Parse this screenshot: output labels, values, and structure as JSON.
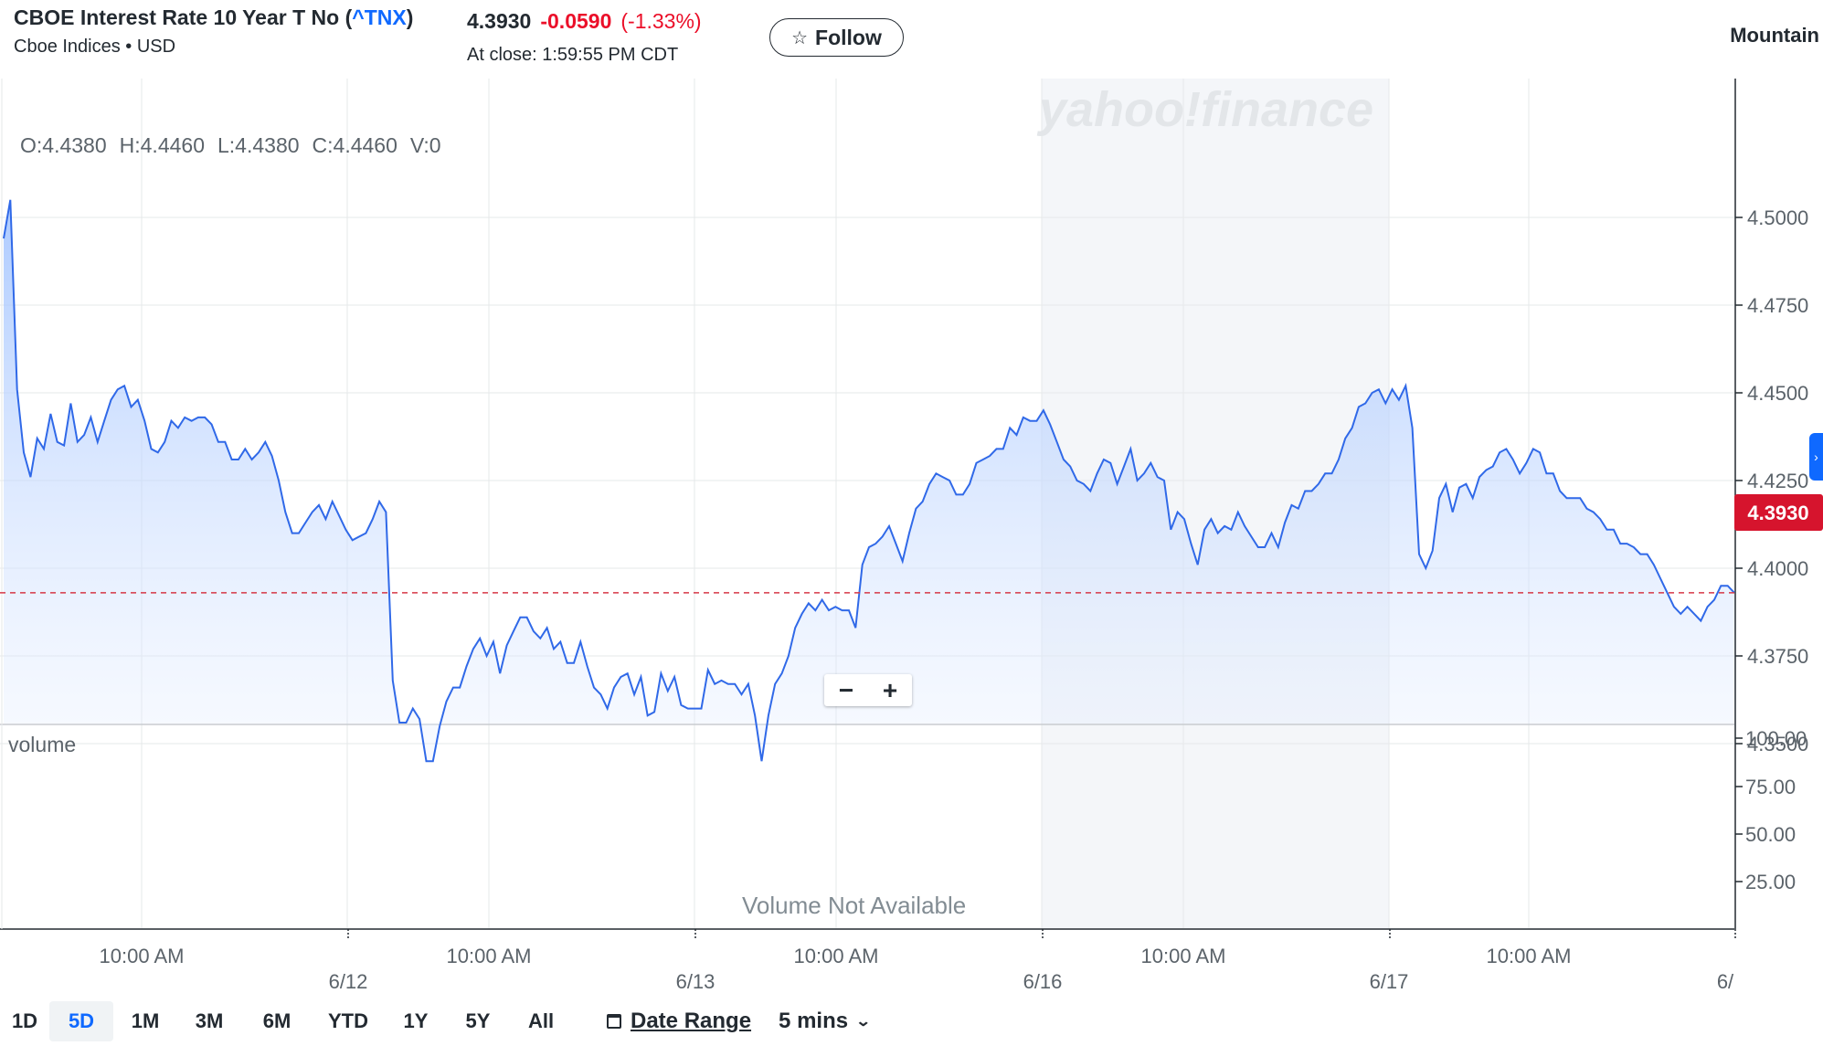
{
  "header": {
    "title": "CBOE Interest Rate 10 Year T No (",
    "symbol": "^TNX",
    "title_close": ")",
    "exchange_currency": "Cboe Indices • USD",
    "price": "4.3930",
    "change": "-0.0590",
    "change_pct": "(-1.33%)",
    "close_time": "At close: 1:59:55 PM CDT",
    "follow_label": "Follow",
    "chart_type": "Mountain"
  },
  "ohlc": {
    "open": "O:4.4380",
    "high": "H:4.4460",
    "low": "L:4.4380",
    "close": "C:4.4460",
    "volume": "V:0"
  },
  "watermark": "yahoo!finance",
  "current_price_tag": "4.3930",
  "volume_label": "volume",
  "volume_not_available": "Volume Not Available",
  "zoom": {
    "minus": "−",
    "plus": "+"
  },
  "ranges": [
    "1D",
    "5D",
    "1M",
    "3M",
    "6M",
    "YTD",
    "1Y",
    "5Y",
    "All"
  ],
  "active_range": "5D",
  "date_range_label": "Date Range",
  "interval_label": "5 mins",
  "colors": {
    "line": "#3069e8",
    "up": "#008a00",
    "down": "#eb0f29",
    "accent": "#0f69ff"
  },
  "chart_data": {
    "type": "area",
    "price_axis": [
      "4.5000",
      "4.4750",
      "4.4500",
      "4.4250",
      "4.4000",
      "4.3750",
      "4.3500"
    ],
    "volume_axis": [
      "100.00",
      "75.00",
      "50.00",
      "25.00"
    ],
    "x_labels": [
      "10:00 AM",
      "6/12",
      "10:00 AM",
      "6/13",
      "10:00 AM",
      "6/16",
      "10:00 AM",
      "6/17",
      "10:00 AM",
      "6/"
    ],
    "ylim": [
      4.333,
      4.509
    ],
    "reference_line": 4.393,
    "series": [
      {
        "values": [
          4.494,
          4.505,
          4.451,
          4.433,
          4.426,
          4.437,
          4.434,
          4.444,
          4.436,
          4.435,
          4.447,
          4.436,
          4.438,
          4.443,
          4.436,
          4.442,
          4.448,
          4.451,
          4.452,
          4.446,
          4.448,
          4.442,
          4.434,
          4.433,
          4.436,
          4.442,
          4.44,
          4.443,
          4.442,
          4.443,
          4.443,
          4.441,
          4.436,
          4.436,
          4.431,
          4.431,
          4.434,
          4.431,
          4.433,
          4.436,
          4.432,
          4.425,
          4.416,
          4.41,
          4.41,
          4.413,
          4.416,
          4.418,
          4.414,
          4.419,
          4.415,
          4.411,
          4.408,
          4.409,
          4.41,
          4.414,
          4.419,
          4.416,
          4.368,
          4.356,
          4.356,
          4.36,
          4.357,
          4.345,
          4.345,
          4.355,
          4.362,
          4.366,
          4.366,
          4.372,
          4.377,
          4.38,
          4.375,
          4.379,
          4.37,
          4.378,
          4.382,
          4.386,
          4.386,
          4.382,
          4.38,
          4.383,
          4.377,
          4.379,
          4.373,
          4.373,
          4.379,
          4.372,
          4.366,
          4.364,
          4.36,
          4.366,
          4.369,
          4.37,
          4.364,
          4.369,
          4.358,
          4.359,
          4.37,
          4.365,
          4.369,
          4.361,
          4.36,
          4.36,
          4.36,
          4.371,
          4.367,
          4.368,
          4.367,
          4.367,
          4.364,
          4.367,
          4.358,
          4.345,
          4.358,
          4.367,
          4.37,
          4.375,
          4.383,
          4.387,
          4.39,
          4.388,
          4.391,
          4.388,
          4.389,
          4.388,
          4.388,
          4.383,
          4.401,
          4.406,
          4.407,
          4.409,
          4.412,
          4.407,
          4.402,
          4.41,
          4.417,
          4.419,
          4.424,
          4.427,
          4.426,
          4.425,
          4.421,
          4.421,
          4.424,
          4.43,
          4.431,
          4.432,
          4.434,
          4.434,
          4.44,
          4.438,
          4.443,
          4.442,
          4.442,
          4.445,
          4.441,
          4.436,
          4.431,
          4.429,
          4.425,
          4.424,
          4.422,
          4.427,
          4.431,
          4.43,
          4.424,
          4.429,
          4.434,
          4.425,
          4.427,
          4.43,
          4.426,
          4.425,
          4.411,
          4.416,
          4.414,
          4.407,
          4.401,
          4.411,
          4.414,
          4.41,
          4.412,
          4.411,
          4.416,
          4.412,
          4.409,
          4.406,
          4.406,
          4.41,
          4.406,
          4.413,
          4.418,
          4.417,
          4.422,
          4.422,
          4.424,
          4.427,
          4.427,
          4.431,
          4.437,
          4.44,
          4.446,
          4.447,
          4.45,
          4.451,
          4.447,
          4.451,
          4.448,
          4.452,
          4.44,
          4.404,
          4.4,
          4.405,
          4.42,
          4.424,
          4.416,
          4.423,
          4.424,
          4.42,
          4.426,
          4.428,
          4.429,
          4.433,
          4.434,
          4.431,
          4.427,
          4.43,
          4.434,
          4.433,
          4.427,
          4.427,
          4.422,
          4.42,
          4.42,
          4.42,
          4.417,
          4.416,
          4.414,
          4.411,
          4.411,
          4.407,
          4.407,
          4.406,
          4.404,
          4.404,
          4.401,
          4.397,
          4.393,
          4.389,
          4.387,
          4.389,
          4.387,
          4.385,
          4.389,
          4.391,
          4.395,
          4.395,
          4.393
        ]
      }
    ]
  }
}
